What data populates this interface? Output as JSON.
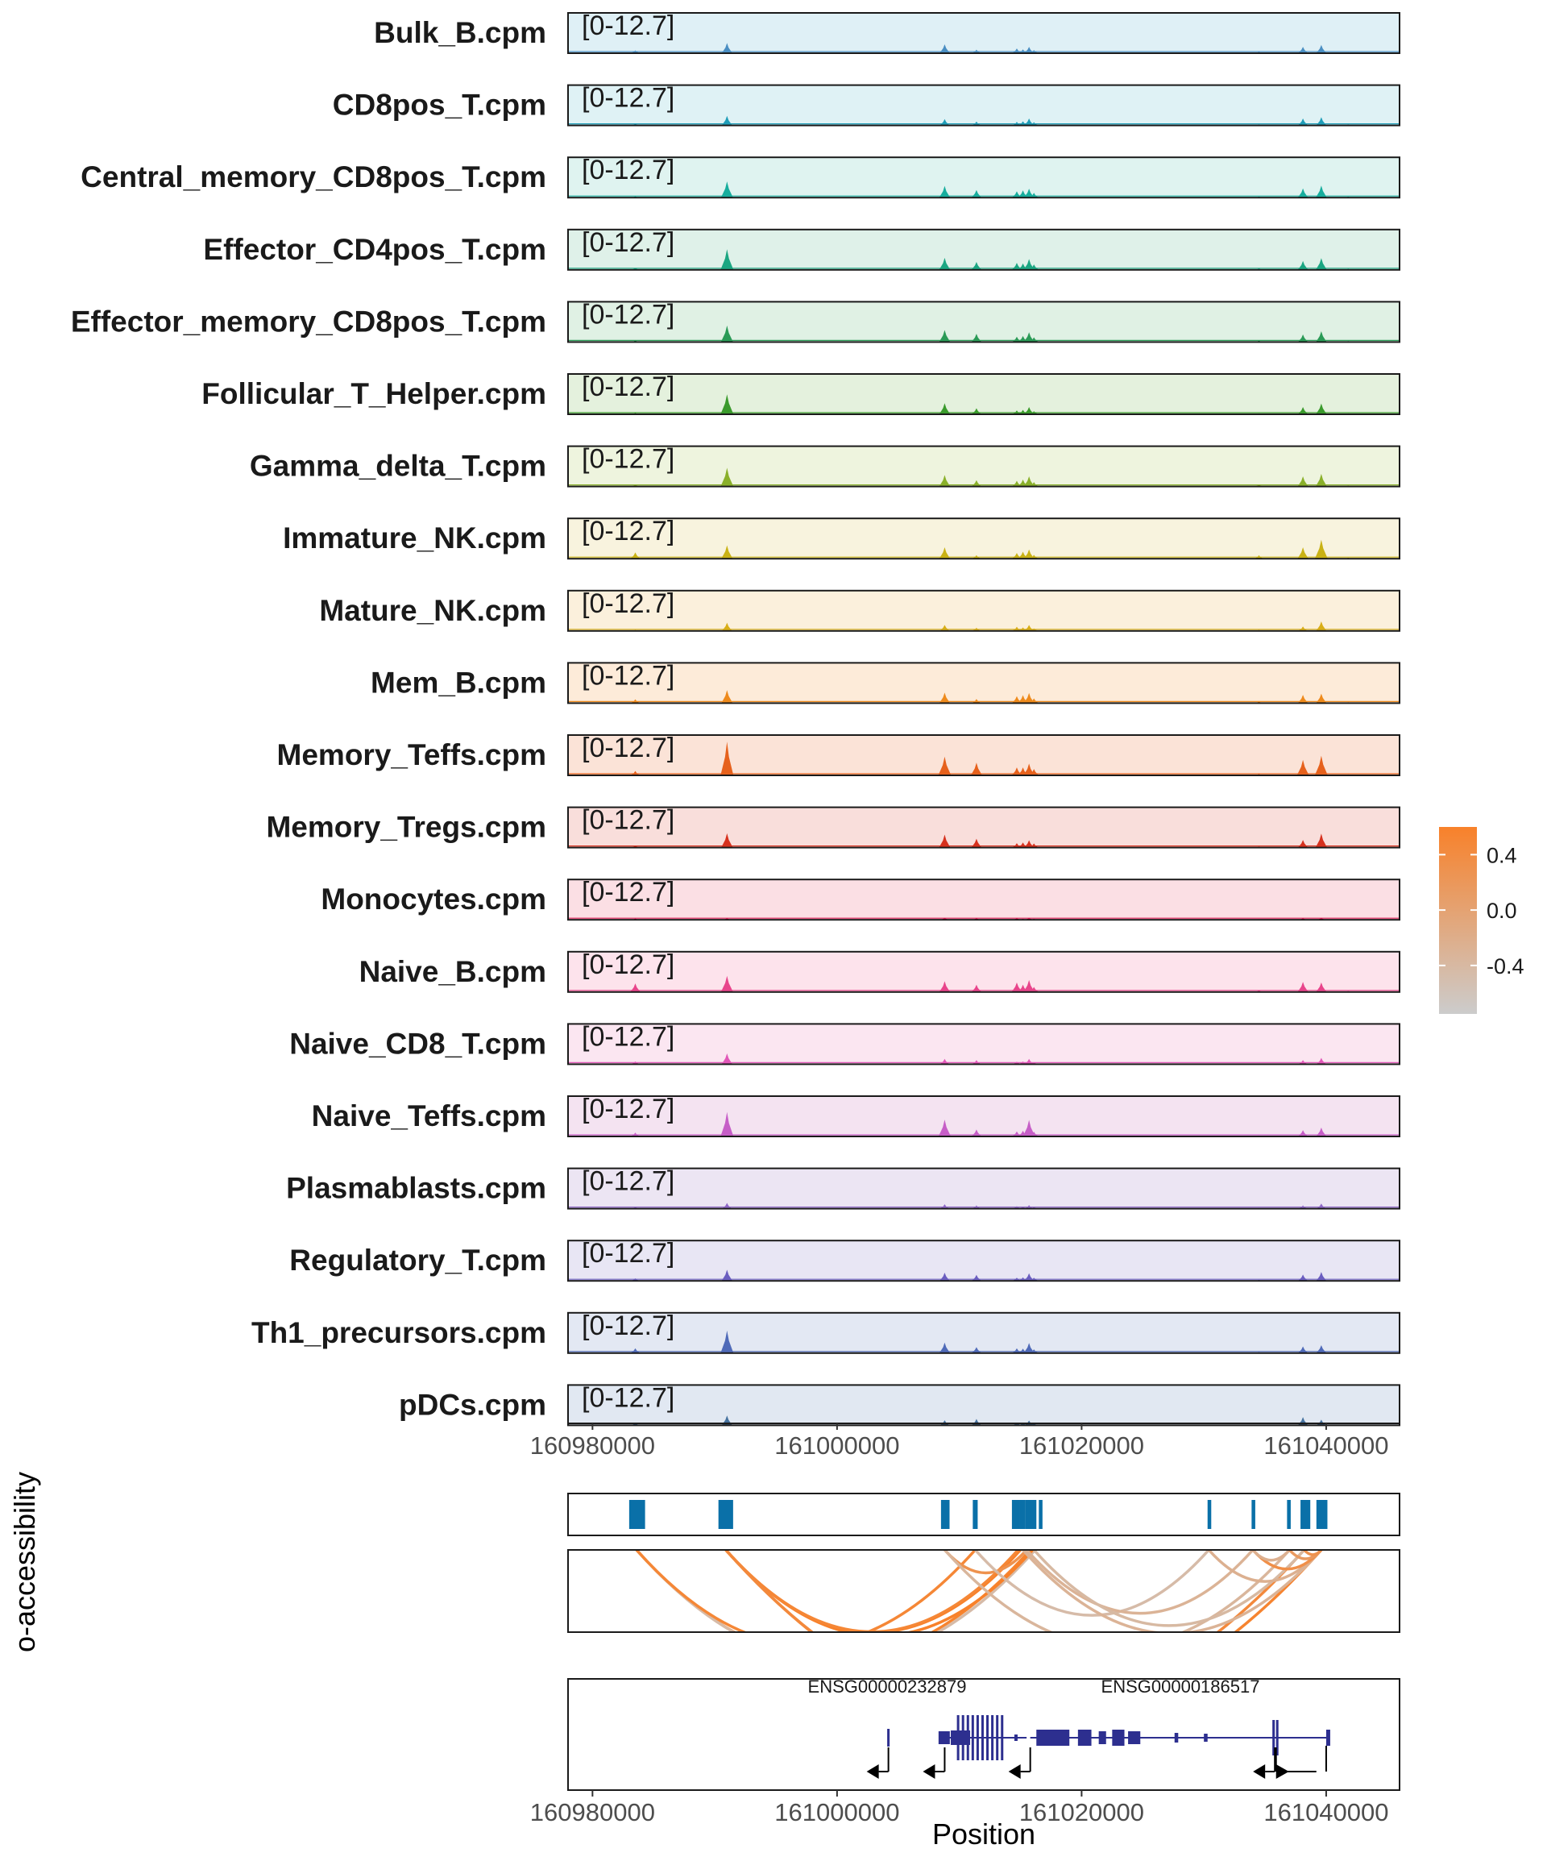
{
  "chart_data": {
    "type": "coverage_tracks",
    "coverage": {
      "range_label": "[0-12.7]",
      "ylim": [
        0,
        12.7
      ],
      "xlim": [
        160978000,
        161046000
      ],
      "x_ticks": [
        "160980000",
        "161000000",
        "161020000",
        "161040000"
      ],
      "peak_positions": [
        160983500,
        160991000,
        161008800,
        161011400,
        161014700,
        161015200,
        161015700,
        161016100,
        161034500,
        161038100,
        161039600,
        161041800
      ],
      "tracks": [
        {
          "name": "Bulk_B.cpm",
          "color": "#4a8ec2",
          "fill": "#dff0f6",
          "values": [
            0.9,
            3.2,
            2.8,
            1.1,
            1.5,
            1.2,
            2.0,
            1.0,
            0.4,
            2.0,
            2.6,
            0.3
          ]
        },
        {
          "name": "CD8pos_T.cpm",
          "color": "#1f9db8",
          "fill": "#dff2f5",
          "values": [
            0.5,
            3.0,
            2.0,
            1.2,
            1.1,
            1.3,
            2.2,
            1.0,
            0.3,
            2.2,
            2.6,
            0.3
          ]
        },
        {
          "name": "Central_memory_CD8pos_T.cpm",
          "color": "#17ad9d",
          "fill": "#dff3f0",
          "values": [
            0.4,
            5.1,
            3.7,
            2.4,
            2.0,
            2.3,
            2.8,
            1.5,
            0.3,
            2.9,
            3.8,
            0.3
          ]
        },
        {
          "name": "Effector_CD4pos_T.cpm",
          "color": "#1ba682",
          "fill": "#dff1e9",
          "values": [
            0.6,
            6.5,
            3.8,
            2.5,
            2.2,
            2.0,
            3.4,
            1.7,
            0.4,
            2.8,
            3.7,
            0.3
          ]
        },
        {
          "name": "Effector_memory_CD8pos_T.cpm",
          "color": "#2a9a56",
          "fill": "#e0f1e4",
          "values": [
            0.5,
            5.2,
            3.8,
            2.6,
            1.7,
            1.9,
            3.1,
            1.5,
            0.4,
            2.4,
            3.4,
            0.3
          ]
        },
        {
          "name": "Follicular_T_Helper.cpm",
          "color": "#3a9a2c",
          "fill": "#e4f1dd",
          "values": [
            0.4,
            6.3,
            3.5,
            1.9,
            1.2,
            1.4,
            2.3,
            1.0,
            0.3,
            2.3,
            3.4,
            0.3
          ]
        },
        {
          "name": "Gamma_delta_T.cpm",
          "color": "#8ab02a",
          "fill": "#eef4de",
          "values": [
            0.6,
            5.9,
            3.6,
            2.0,
            1.8,
            2.2,
            3.2,
            1.4,
            0.6,
            3.2,
            4.0,
            0.3
          ]
        },
        {
          "name": "Immature_NK.cpm",
          "color": "#c9b215",
          "fill": "#f8f3de",
          "values": [
            2.0,
            4.2,
            3.6,
            1.1,
            1.8,
            2.2,
            2.9,
            1.2,
            1.1,
            3.6,
            6.0,
            0.3
          ]
        },
        {
          "name": "Mature_NK.cpm",
          "color": "#d8ae18",
          "fill": "#fbf0dc",
          "values": [
            0.3,
            2.6,
            1.9,
            1.0,
            1.3,
            1.1,
            1.9,
            0.8,
            0.3,
            1.4,
            3.0,
            0.2
          ]
        },
        {
          "name": "Mem_B.cpm",
          "color": "#ee8a1c",
          "fill": "#fdebd9",
          "values": [
            1.2,
            4.1,
            3.3,
            1.3,
            2.2,
            2.5,
            3.2,
            1.5,
            0.5,
            2.6,
            3.0,
            0.3
          ]
        },
        {
          "name": "Memory_Teffs.cpm",
          "color": "#e6611c",
          "fill": "#fbe3d7",
          "values": [
            1.4,
            10.6,
            5.9,
            4.0,
            2.5,
            2.5,
            3.7,
            2.0,
            0.4,
            4.9,
            6.2,
            0.3
          ]
        },
        {
          "name": "Memory_Tregs.cpm",
          "color": "#d6311e",
          "fill": "#f9dedb",
          "values": [
            0.6,
            4.5,
            4.1,
            2.8,
            1.4,
            1.6,
            2.3,
            1.3,
            0.3,
            2.4,
            4.4,
            0.2
          ]
        },
        {
          "name": "Monocytes.cpm",
          "color": "#d81b53",
          "fill": "#fbdfe4",
          "values": [
            0.4,
            0.5,
            0.6,
            0.5,
            0.5,
            0.3,
            0.6,
            0.3,
            0.2,
            0.5,
            0.6,
            0.1
          ]
        },
        {
          "name": "Naive_B.cpm",
          "color": "#e8448b",
          "fill": "#fde3ec",
          "values": [
            2.7,
            5.1,
            3.4,
            2.3,
            3.0,
            2.3,
            3.8,
            1.6,
            0.5,
            3.2,
            3.0,
            0.3
          ]
        },
        {
          "name": "Naive_CD8_T.cpm",
          "color": "#e157b8",
          "fill": "#fbe6f1",
          "values": [
            0.9,
            3.4,
            1.7,
            1.3,
            0.8,
            0.9,
            1.7,
            0.6,
            0.2,
            1.3,
            2.0,
            0.2
          ]
        },
        {
          "name": "Naive_Teffs.cpm",
          "color": "#c65ec7",
          "fill": "#f4e3f1",
          "values": [
            1.2,
            7.7,
            5.3,
            2.2,
            1.6,
            1.8,
            5.2,
            1.5,
            0.3,
            2.0,
            2.8,
            0.2
          ]
        },
        {
          "name": "Plasmablasts.cpm",
          "color": "#8e67c6",
          "fill": "#ece5f3",
          "values": [
            0.5,
            1.8,
            1.4,
            1.0,
            0.8,
            0.6,
            1.1,
            0.5,
            0.2,
            1.0,
            1.6,
            0.2
          ]
        },
        {
          "name": "Regulatory_T.cpm",
          "color": "#6b5ec0",
          "fill": "#e8e6f4",
          "values": [
            0.8,
            3.5,
            2.6,
            1.9,
            1.0,
            1.1,
            2.4,
            1.0,
            0.3,
            2.0,
            2.8,
            0.2
          ]
        },
        {
          "name": "Th1_precursors.cpm",
          "color": "#4f6ab8",
          "fill": "#e3e8f3",
          "values": [
            1.5,
            7.1,
            3.3,
            1.9,
            1.5,
            1.4,
            3.2,
            1.2,
            0.3,
            2.1,
            2.5,
            0.2
          ]
        },
        {
          "name": "pDCs.cpm",
          "color": "#46729f",
          "fill": "#e1e8f2",
          "values": [
            0.7,
            3.1,
            1.6,
            2.0,
            0.8,
            0.7,
            1.5,
            0.6,
            0.2,
            2.6,
            1.8,
            0.2
          ]
        }
      ]
    },
    "peaks_track": {
      "color": "#0a70a8",
      "regions": [
        [
          160983000,
          160984300
        ],
        [
          160990300,
          160991500
        ],
        [
          161008500,
          161009200
        ],
        [
          161011100,
          161011500
        ],
        [
          161014300,
          161014900
        ],
        [
          161014900,
          161015400
        ],
        [
          161015400,
          161016300
        ],
        [
          161016500,
          161016800
        ],
        [
          161030300,
          161030600
        ],
        [
          161033900,
          161034200
        ],
        [
          161036800,
          161037100
        ],
        [
          161037900,
          161038700
        ],
        [
          161039200,
          161040100
        ]
      ]
    },
    "coaccessibility": {
      "axis_title": "o-accessibility",
      "links": [
        {
          "start": 160983600,
          "end": 161015800,
          "score": 0.55
        },
        {
          "start": 160983600,
          "end": 161016200,
          "score": -0.45
        },
        {
          "start": 160983600,
          "end": 161011300,
          "score": 0.5
        },
        {
          "start": 160990900,
          "end": 161015000,
          "score": 0.6
        },
        {
          "start": 160990900,
          "end": 161016000,
          "score": 0.6
        },
        {
          "start": 160990900,
          "end": 161014800,
          "score": 0.5
        },
        {
          "start": 160990900,
          "end": 161039600,
          "score": 0.55
        },
        {
          "start": 160990900,
          "end": 161038200,
          "score": 0.45
        },
        {
          "start": 161008800,
          "end": 161015500,
          "score": 0.3
        },
        {
          "start": 161008800,
          "end": 161037000,
          "score": -0.35
        },
        {
          "start": 161011300,
          "end": 161030400,
          "score": -0.45
        },
        {
          "start": 161015200,
          "end": 161039600,
          "score": -0.3
        },
        {
          "start": 161015500,
          "end": 161034000,
          "score": -0.3
        },
        {
          "start": 161016100,
          "end": 161038200,
          "score": -0.4
        },
        {
          "start": 161030400,
          "end": 161039600,
          "score": -0.25
        },
        {
          "start": 161034000,
          "end": 161039600,
          "score": 0.35
        },
        {
          "start": 161034000,
          "end": 161037000,
          "score": -0.25
        },
        {
          "start": 161037000,
          "end": 161039600,
          "score": 0.15
        },
        {
          "start": 161038200,
          "end": 161039600,
          "score": 0.3
        }
      ],
      "legend": {
        "ticks": [
          "0.4",
          "0.0",
          "-0.4"
        ],
        "tick_values": [
          0.4,
          0.0,
          -0.4
        ],
        "range": [
          -0.75,
          0.6
        ],
        "low_color": "#cccccc",
        "high_color": "#f8812a"
      }
    },
    "genes": {
      "color": "#2d2f8f",
      "items": [
        {
          "name": "ENSG00000232879",
          "start": 161008600,
          "end": 161015500
        },
        {
          "name": "ENSG00000186517",
          "start": 161015800,
          "end": 161040300
        }
      ]
    },
    "x_axis_title": "Position"
  }
}
